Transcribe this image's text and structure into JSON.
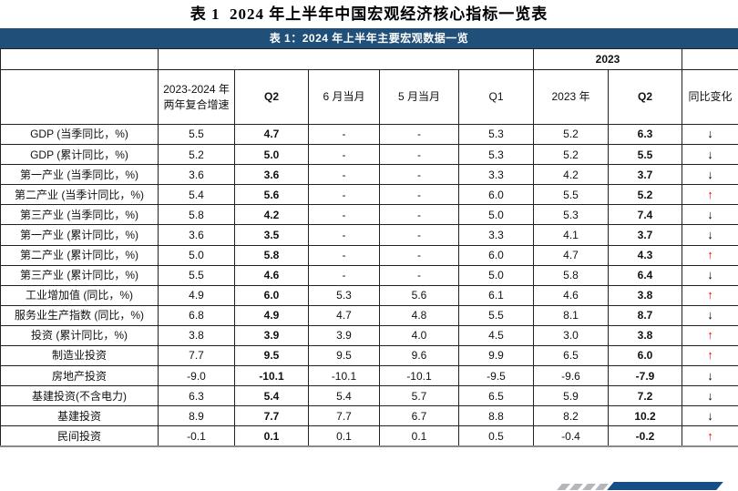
{
  "page_title": "表 1  2024 年上半年中国宏观经济核心指标一览表",
  "colors": {
    "caption_bg": "#20507A",
    "grid": "#222222",
    "bottom_line": "#8A8A8A",
    "trend_up": "#FF0000",
    "trend_down": "#000000",
    "bar": "#164E87",
    "stripe": "#B3B6BA"
  },
  "table": {
    "caption": "表 1：2024 年上半年主要宏观数据一览",
    "group_header": "2023",
    "columns": [
      "",
      "2023-2024 年两年复合增速",
      "Q2",
      "6 月当月",
      "5 月当月",
      "Q1",
      "2023 年",
      "Q2",
      "同比变化"
    ],
    "trend_icons": {
      "up": "↑",
      "down": "↓"
    },
    "rows": [
      {
        "label": "GDP (当季同比，%)",
        "values": [
          "5.5",
          "4.7",
          "-",
          "-",
          "5.3",
          "5.2",
          "6.3"
        ],
        "trend": "down"
      },
      {
        "label": "GDP (累计同比，%)",
        "values": [
          "5.2",
          "5.0",
          "-",
          "-",
          "5.3",
          "5.2",
          "5.5"
        ],
        "trend": "down"
      },
      {
        "label": "第一产业 (当季同比，%)",
        "values": [
          "3.6",
          "3.6",
          "-",
          "-",
          "3.3",
          "4.2",
          "3.7"
        ],
        "trend": "down"
      },
      {
        "label": "第二产业 (当季计同比，%)",
        "values": [
          "5.4",
          "5.6",
          "-",
          "-",
          "6.0",
          "5.5",
          "5.2"
        ],
        "trend": "up"
      },
      {
        "label": "第三产业 (当季同比，%)",
        "values": [
          "5.8",
          "4.2",
          "-",
          "-",
          "5.0",
          "5.3",
          "7.4"
        ],
        "trend": "down"
      },
      {
        "label": "第一产业 (累计同比，%)",
        "values": [
          "3.6",
          "3.5",
          "-",
          "-",
          "3.3",
          "4.1",
          "3.7"
        ],
        "trend": "down"
      },
      {
        "label": "第二产业 (累计同比，%)",
        "values": [
          "5.0",
          "5.8",
          "-",
          "-",
          "6.0",
          "4.7",
          "4.3"
        ],
        "trend": "up"
      },
      {
        "label": "第三产业 (累计同比，%)",
        "values": [
          "5.5",
          "4.6",
          "-",
          "-",
          "5.0",
          "5.8",
          "6.4"
        ],
        "trend": "down"
      },
      {
        "label": "工业增加值 (同比，%)",
        "values": [
          "4.9",
          "6.0",
          "5.3",
          "5.6",
          "6.1",
          "4.6",
          "3.8"
        ],
        "trend": "up"
      },
      {
        "label": "服务业生产指数 (同比，%)",
        "values": [
          "6.8",
          "4.9",
          "4.7",
          "4.8",
          "5.5",
          "8.1",
          "8.7"
        ],
        "trend": "down"
      },
      {
        "label": "投资 (累计同比，%)",
        "values": [
          "3.8",
          "3.9",
          "3.9",
          "4.0",
          "4.5",
          "3.0",
          "3.8"
        ],
        "trend": "up"
      },
      {
        "label": "制造业投资",
        "values": [
          "7.7",
          "9.5",
          "9.5",
          "9.6",
          "9.9",
          "6.5",
          "6.0"
        ],
        "trend": "up"
      },
      {
        "label": "房地产投资",
        "values": [
          "-9.0",
          "-10.1",
          "-10.1",
          "-10.1",
          "-9.5",
          "-9.6",
          "-7.9"
        ],
        "trend": "down"
      },
      {
        "label": "基建投资(不含电力)",
        "values": [
          "6.3",
          "5.4",
          "5.4",
          "5.7",
          "6.5",
          "5.9",
          "7.2"
        ],
        "trend": "down"
      },
      {
        "label": "基建投资",
        "values": [
          "8.9",
          "7.7",
          "7.7",
          "6.7",
          "8.8",
          "8.2",
          "10.2"
        ],
        "trend": "down"
      },
      {
        "label": "民间投资",
        "values": [
          "-0.1",
          "0.1",
          "0.1",
          "0.1",
          "0.5",
          "-0.4",
          "-0.2"
        ],
        "trend": "up"
      }
    ]
  }
}
